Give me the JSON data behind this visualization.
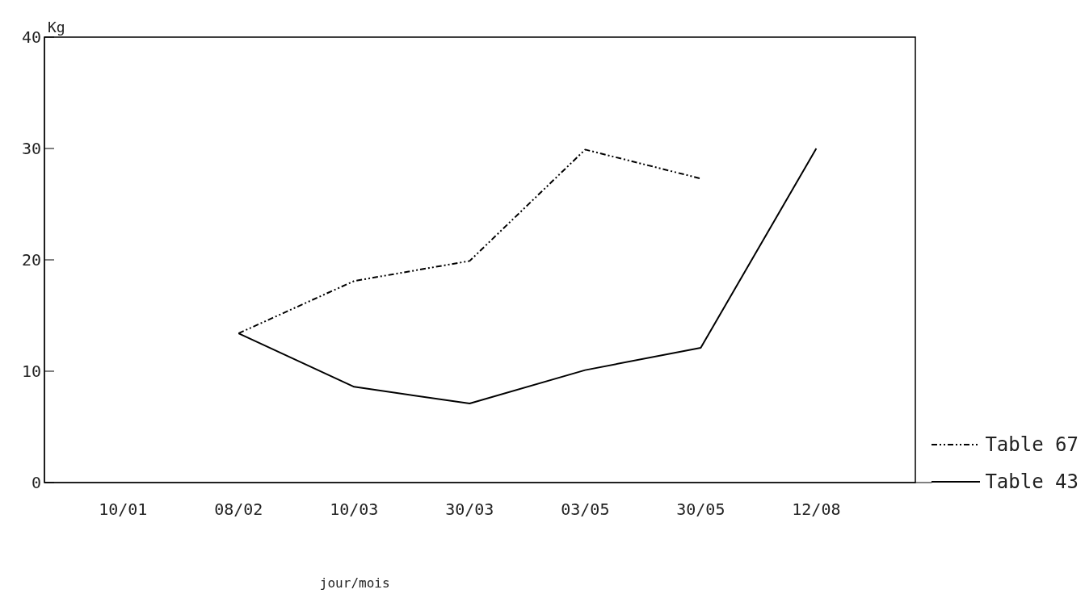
{
  "chart_data": {
    "type": "line",
    "xlabel": "jour/mois",
    "ylabel": "Kg",
    "categories": [
      "10/01",
      "08/02",
      "10/03",
      "30/03",
      "03/05",
      "30/05",
      "12/08"
    ],
    "series": [
      {
        "name": "Table 67",
        "color": "#000000",
        "line_style": "dashed",
        "values": [
          null,
          13.4,
          18.1,
          19.9,
          29.9,
          27.3,
          null
        ]
      },
      {
        "name": "Table 43",
        "color": "#000000",
        "line_style": "solid",
        "values": [
          null,
          13.4,
          8.6,
          7.1,
          10.1,
          12.1,
          30.0
        ]
      }
    ],
    "ylim": [
      0,
      40
    ],
    "yticks": [
      0,
      10,
      20,
      30,
      40
    ],
    "grid": false,
    "legend": "bottom right",
    "marker": "none"
  }
}
